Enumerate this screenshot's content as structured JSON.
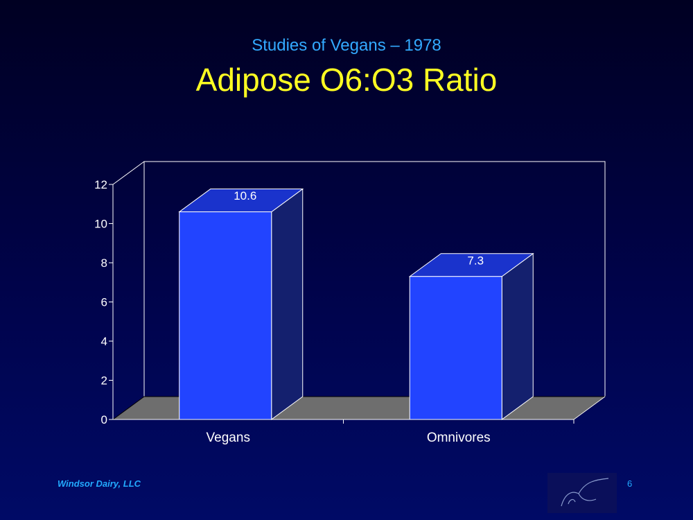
{
  "slide": {
    "subtitle": "Studies of Vegans – 1978",
    "title": "Adipose O6:O3 Ratio",
    "footer": "Windsor Dairy, LLC",
    "page_number": "6"
  },
  "colors": {
    "background": "#000a66",
    "bar_front": "#2244ff",
    "bar_top": "#1a33cc",
    "bar_side": "#14206e",
    "floor": "#6e6e6e",
    "subtitle": "#33aaff",
    "title": "#ffff22"
  },
  "chart_data": {
    "type": "bar",
    "style": "3d",
    "categories": [
      "Vegans",
      "Omnivores"
    ],
    "values": [
      10.6,
      7.3
    ],
    "data_labels": [
      "10.6",
      "7.3"
    ],
    "ylim": [
      0,
      12
    ],
    "yticks": [
      "0",
      "2",
      "4",
      "6",
      "8",
      "10",
      "12"
    ],
    "xlabel": "",
    "ylabel": "",
    "grid": false,
    "legend": "none"
  }
}
